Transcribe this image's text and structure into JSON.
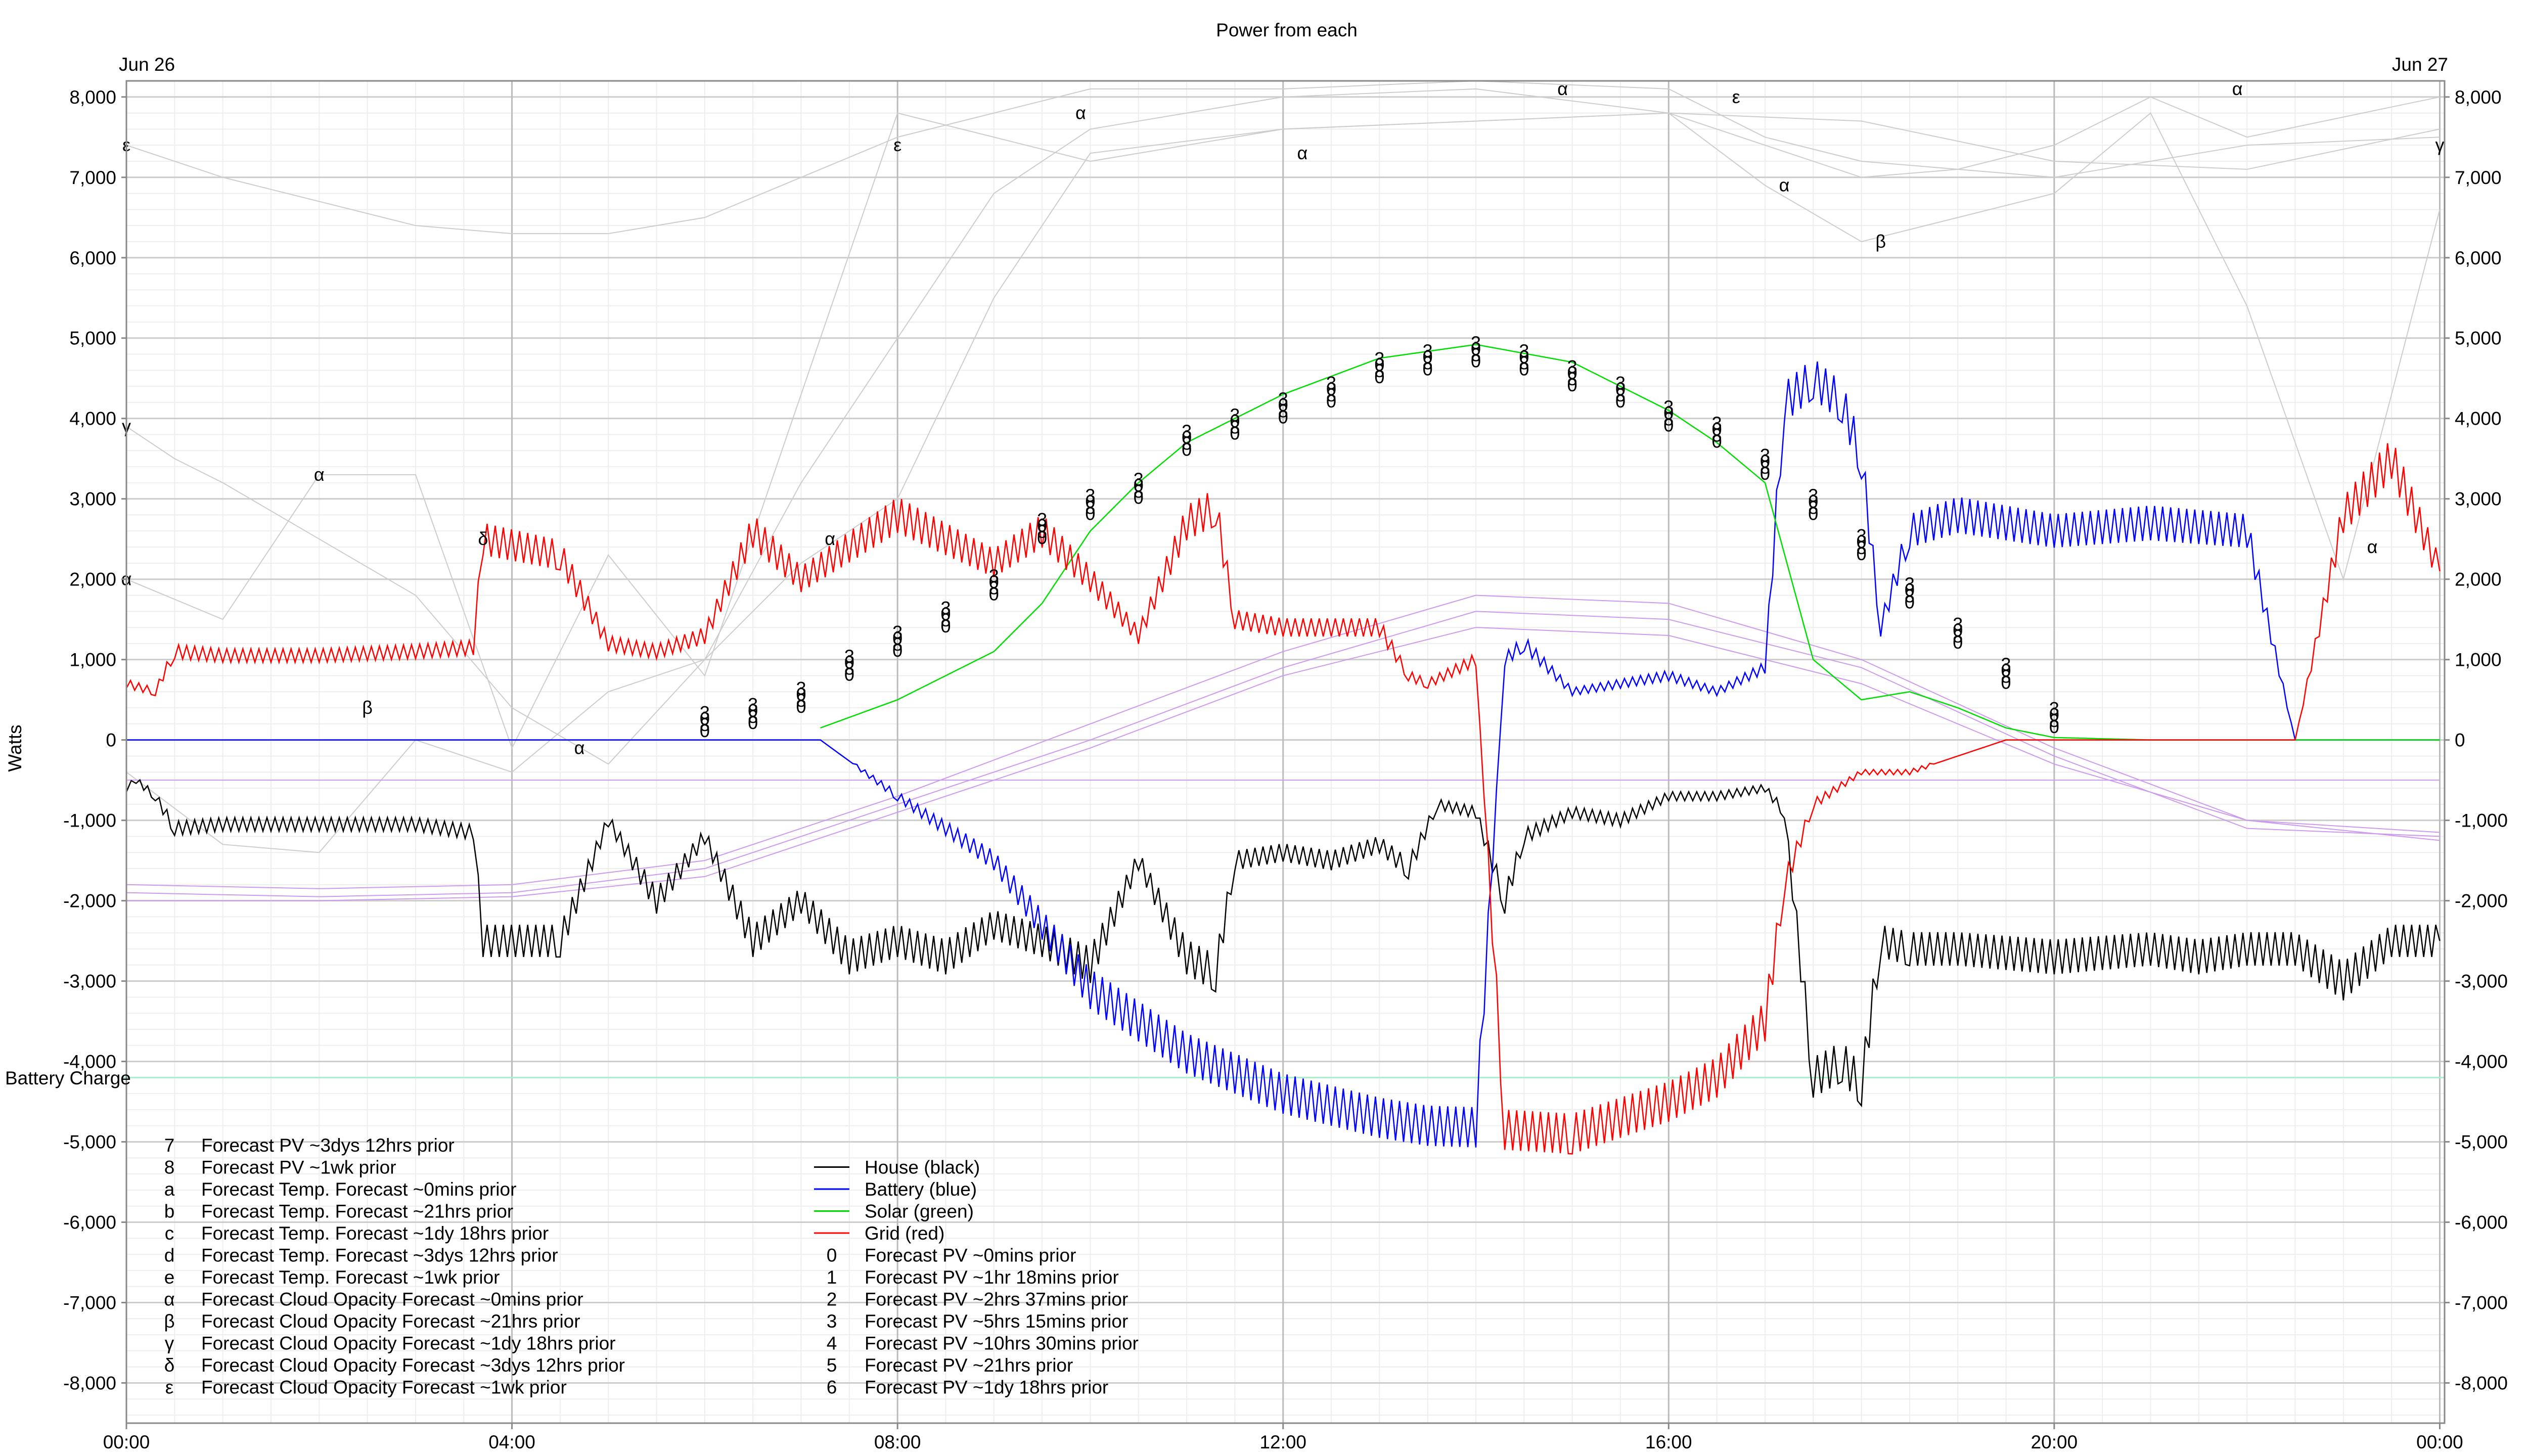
{
  "chart_data": {
    "type": "line",
    "title": "Power from each",
    "ylabel": "Watts",
    "ylim": [
      -8500,
      8200
    ],
    "xlim_hours": [
      0,
      24.05
    ],
    "date_left": "Jun 26",
    "date_right": "Jun 27",
    "x_ticks": [
      {
        "hour": 0,
        "label": "00:00"
      },
      {
        "hour": 4,
        "label": "04:00"
      },
      {
        "hour": 8,
        "label": "08:00"
      },
      {
        "hour": 12,
        "label": "12:00"
      },
      {
        "hour": 16,
        "label": "16:00"
      },
      {
        "hour": 20,
        "label": "20:00"
      },
      {
        "hour": 24,
        "label": "00:00"
      }
    ],
    "y_ticks": [
      {
        "value": 8000,
        "label": "8,000"
      },
      {
        "value": 7000,
        "label": "7,000"
      },
      {
        "value": 6000,
        "label": "6,000"
      },
      {
        "value": 5000,
        "label": "5,000"
      },
      {
        "value": 4000,
        "label": "4,000"
      },
      {
        "value": 3000,
        "label": "3,000"
      },
      {
        "value": 2000,
        "label": "2,000"
      },
      {
        "value": 1000,
        "label": "1,000"
      },
      {
        "value": 0,
        "label": "0"
      },
      {
        "value": -1000,
        "label": "-1,000"
      },
      {
        "value": -2000,
        "label": "-2,000"
      },
      {
        "value": -3000,
        "label": "-3,000"
      },
      {
        "value": -4000,
        "label": "-4,000"
      },
      {
        "value": -5000,
        "label": "-5,000"
      },
      {
        "value": -6000,
        "label": "-6,000"
      },
      {
        "value": -7000,
        "label": "-7,000"
      },
      {
        "value": -8000,
        "label": "-8,000"
      }
    ],
    "battery_charge_label": "Battery Charge",
    "battery_charge_level": -4200,
    "series": [
      {
        "name": "House (black)",
        "color": "#000000",
        "x": [
          0,
          0.1,
          0.3,
          0.5,
          1,
          2,
          3,
          3.6,
          3.7,
          4.5,
          5,
          5.5,
          6,
          6.5,
          7,
          7.5,
          8,
          8.5,
          9,
          9.5,
          10,
          10.5,
          11,
          11.3,
          11.5,
          12,
          12.5,
          13,
          13.3,
          13.6,
          14,
          14.3,
          14.5,
          15,
          15.5,
          16,
          16.5,
          17,
          17.2,
          17.5,
          17.8,
          18,
          18.2,
          18.5,
          19,
          20,
          21,
          21.5,
          22,
          22.5,
          23,
          23.5,
          24
        ],
        "y": [
          -600,
          -500,
          -700,
          -1100,
          -1050,
          -1050,
          -1050,
          -1150,
          -2500,
          -2500,
          -1000,
          -2000,
          -1200,
          -2500,
          -2000,
          -2700,
          -2500,
          -2700,
          -2300,
          -2500,
          -2800,
          -1500,
          -2700,
          -2900,
          -1500,
          -1400,
          -1500,
          -1300,
          -1600,
          -800,
          -900,
          -2000,
          -1200,
          -900,
          -1000,
          -700,
          -700,
          -600,
          -900,
          -4200,
          -4000,
          -4300,
          -2500,
          -2600,
          -2600,
          -2700,
          -2600,
          -2700,
          -2600,
          -2600,
          -3000,
          -2500,
          -2500
        ]
      },
      {
        "name": "Battery (blue)",
        "color": "#0000ff",
        "x": [
          0,
          7.2,
          8,
          9,
          10,
          11,
          12,
          13,
          13.5,
          14,
          14.3,
          14.5,
          15,
          16,
          16.5,
          17,
          17.2,
          17.5,
          17.8,
          18,
          18.2,
          18.5,
          19,
          20,
          21,
          22,
          22.5,
          23,
          24
        ],
        "y": [
          0,
          0,
          -700,
          -1500,
          -3100,
          -3900,
          -4400,
          -4700,
          -4800,
          -4820,
          1000,
          1200,
          600,
          800,
          600,
          900,
          4200,
          4500,
          4200,
          3500,
          1400,
          2600,
          2800,
          2600,
          2700,
          2600,
          0,
          0,
          0
        ]
      },
      {
        "name": "Solar (green)",
        "color": "#00dd00",
        "x": [
          7.2,
          8,
          9,
          9.5,
          10,
          10.5,
          11,
          12,
          13,
          14,
          15,
          16,
          16.5,
          17,
          17.5,
          18,
          18.5,
          19,
          19.5,
          20,
          21,
          22,
          23,
          24
        ],
        "y": [
          150,
          500,
          1100,
          1700,
          2600,
          3200,
          3700,
          4300,
          4750,
          4920,
          4700,
          4100,
          3700,
          3200,
          1000,
          500,
          600,
          400,
          150,
          30,
          0,
          0,
          0,
          0
        ]
      },
      {
        "name": "Grid (red)",
        "color": "#ff0000",
        "x": [
          0,
          0.3,
          0.5,
          1,
          2,
          3,
          3.6,
          3.7,
          4.5,
          5,
          5.5,
          6,
          6.5,
          7,
          7.5,
          8,
          8.5,
          9,
          9.5,
          10,
          10.5,
          11,
          11.3,
          11.5,
          12,
          12.5,
          13,
          13.3,
          13.5,
          14,
          14.3,
          15,
          16,
          16.5,
          17,
          17.2,
          17.5,
          18,
          18.5,
          19,
          19.5,
          20,
          21,
          22,
          22.5,
          23,
          23.5,
          24
        ],
        "y": [
          700,
          600,
          1100,
          1050,
          1050,
          1100,
          1150,
          2500,
          2300,
          1200,
          1100,
          1300,
          2600,
          2000,
          2400,
          2800,
          2500,
          2200,
          2600,
          2000,
          1300,
          2700,
          2900,
          1500,
          1400,
          1400,
          1400,
          800,
          700,
          1000,
          -4850,
          -4900,
          -4500,
          -4200,
          -3500,
          -1800,
          -800,
          -400,
          -400,
          -200,
          0,
          0,
          0,
          0,
          0,
          2800,
          3500,
          2100
        ]
      }
    ],
    "forecast_markers": [
      {
        "symbol": "α",
        "series": "Forecast Cloud Opacity Forecast ~0mins prior"
      },
      {
        "symbol": "β",
        "series": "Forecast Cloud Opacity Forecast ~21hrs prior"
      },
      {
        "symbol": "γ",
        "series": "Forecast Cloud Opacity Forecast ~1dy 18hrs prior"
      },
      {
        "symbol": "δ",
        "series": "Forecast Cloud Opacity Forecast ~3dys 12hrs prior"
      },
      {
        "symbol": "ε",
        "series": "Forecast Cloud Opacity Forecast ~1wk prior"
      }
    ],
    "forecast_pv": {
      "x": [
        6,
        6.5,
        7,
        7.5,
        8,
        8.5,
        9,
        9.5,
        10,
        10.5,
        11,
        11.5,
        12,
        12.5,
        13,
        13.5,
        14,
        14.5,
        15,
        15.5,
        16,
        16.5,
        17,
        17.5,
        18,
        18.5,
        19,
        19.5,
        20
      ],
      "y": [
        100,
        200,
        400,
        800,
        1100,
        1400,
        1800,
        2500,
        2800,
        3000,
        3600,
        3800,
        4000,
        4200,
        4500,
        4600,
        4700,
        4600,
        4400,
        4200,
        3900,
        3700,
        3300,
        2800,
        2300,
        1700,
        1200,
        700,
        150
      ]
    },
    "legend_left": [
      {
        "symbol": "7",
        "label": "Forecast PV ~3dys 12hrs prior"
      },
      {
        "symbol": "8",
        "label": "Forecast PV ~1wk prior"
      },
      {
        "symbol": "a",
        "label": "Forecast Temp. Forecast ~0mins prior"
      },
      {
        "symbol": "b",
        "label": "Forecast Temp. Forecast ~21hrs prior"
      },
      {
        "symbol": "c",
        "label": "Forecast Temp. Forecast ~1dy 18hrs prior"
      },
      {
        "symbol": "d",
        "label": "Forecast Temp. Forecast ~3dys 12hrs prior"
      },
      {
        "symbol": "e",
        "label": "Forecast Temp. Forecast ~1wk prior"
      },
      {
        "symbol": "α",
        "label": "Forecast Cloud Opacity Forecast ~0mins prior"
      },
      {
        "symbol": "β",
        "label": "Forecast Cloud Opacity Forecast ~21hrs prior"
      },
      {
        "symbol": "γ",
        "label": "Forecast Cloud Opacity Forecast ~1dy 18hrs prior"
      },
      {
        "symbol": "δ",
        "label": "Forecast Cloud Opacity Forecast ~3dys 12hrs prior"
      },
      {
        "symbol": "ε",
        "label": "Forecast Cloud Opacity Forecast ~1wk prior"
      }
    ],
    "legend_right": [
      {
        "symbol": "",
        "label": "House (black)",
        "color": "#000000"
      },
      {
        "symbol": "",
        "label": "Battery (blue)",
        "color": "#0000ff"
      },
      {
        "symbol": "",
        "label": "Solar (green)",
        "color": "#00dd00"
      },
      {
        "symbol": "",
        "label": "Grid (red)",
        "color": "#ff0000"
      },
      {
        "symbol": "0",
        "label": "Forecast PV ~0mins prior"
      },
      {
        "symbol": "1",
        "label": "Forecast PV ~1hr 18mins prior"
      },
      {
        "symbol": "2",
        "label": "Forecast PV ~2hrs 37mins prior"
      },
      {
        "symbol": "3",
        "label": "Forecast PV ~5hrs 15mins prior"
      },
      {
        "symbol": "4",
        "label": "Forecast PV ~10hrs 30mins prior"
      },
      {
        "symbol": "5",
        "label": "Forecast PV ~21hrs prior"
      },
      {
        "symbol": "6",
        "label": "Forecast PV ~1dy 18hrs prior"
      }
    ]
  }
}
